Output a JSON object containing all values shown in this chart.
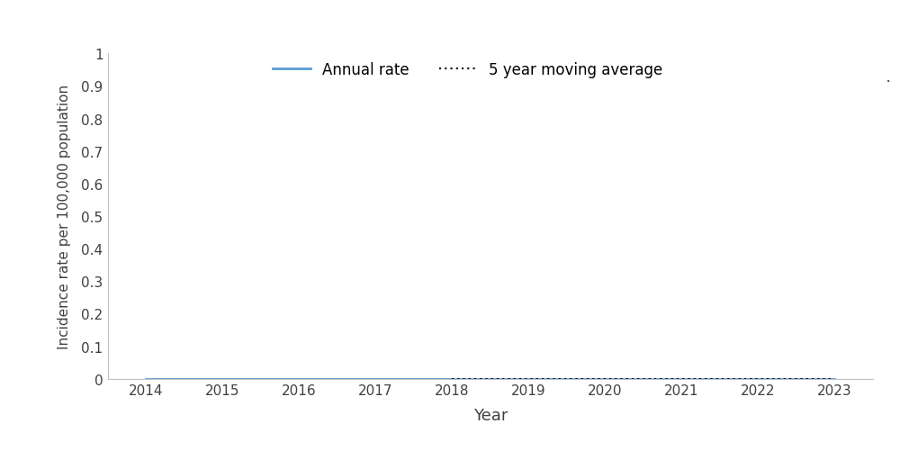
{
  "years": [
    2014,
    2015,
    2016,
    2017,
    2018,
    2019,
    2020,
    2021,
    2022,
    2023
  ],
  "annual_rate": [
    0.0,
    0.0,
    0.0,
    0.0,
    0.0,
    0.0,
    0.0,
    0.0,
    0.0,
    0.0
  ],
  "moving_avg_years": [
    2018,
    2019,
    2020,
    2021,
    2022,
    2023
  ],
  "moving_avg": [
    0.0,
    0.0,
    0.0,
    0.0,
    0.0,
    0.0
  ],
  "annual_rate_color": "#5B9BD5",
  "moving_avg_color": "#000000",
  "xlabel": "Year",
  "ylabel": "Incidence rate per 100,000 population",
  "ylim": [
    0,
    1.0
  ],
  "xlim": [
    2013.5,
    2023.5
  ],
  "yticks": [
    0,
    0.1,
    0.2,
    0.3,
    0.4,
    0.5,
    0.6,
    0.7,
    0.8,
    0.9,
    1.0
  ],
  "ytick_labels": [
    "0",
    "0.1",
    "0.2",
    "0.3",
    "0.4",
    "0.5",
    "0.6",
    "0.7",
    "0.8",
    "0.9",
    "1"
  ],
  "xticks": [
    2014,
    2015,
    2016,
    2017,
    2018,
    2019,
    2020,
    2021,
    2022,
    2023
  ],
  "legend_annual": "Annual rate",
  "legend_moving": "5 year moving average",
  "background_color": "#ffffff",
  "spine_color": "#c0c0c0",
  "tick_label_color": "#404040",
  "axis_label_color": "#404040"
}
